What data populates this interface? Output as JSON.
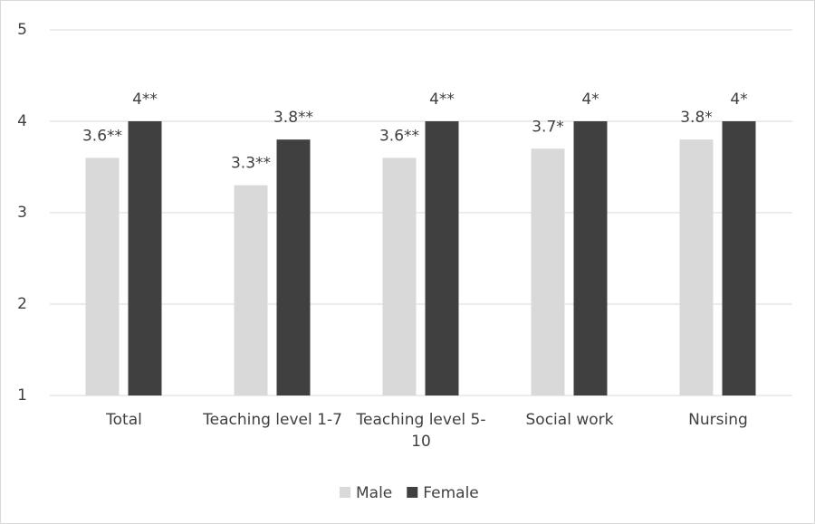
{
  "chart_data": {
    "type": "bar",
    "categories": [
      "Total",
      "Teaching level 1-7",
      "Teaching level 5-10",
      "Social work",
      "Nursing"
    ],
    "series": [
      {
        "name": "Male",
        "color": "#d9d9d9",
        "values": [
          3.6,
          3.3,
          3.6,
          3.7,
          3.8
        ],
        "value_labels": [
          "3.6**",
          "3.3**",
          "3.6**",
          "3.7*",
          "3.8*"
        ]
      },
      {
        "name": "Female",
        "color": "#404040",
        "values": [
          4,
          3.8,
          4,
          4,
          4
        ],
        "value_labels": [
          "4**",
          "3.8**",
          "4**",
          "4*",
          "4*"
        ]
      }
    ],
    "ylim": [
      1,
      5
    ],
    "yticks": [
      1,
      2,
      3,
      4,
      5
    ],
    "grid": true,
    "legend": "bottom"
  }
}
